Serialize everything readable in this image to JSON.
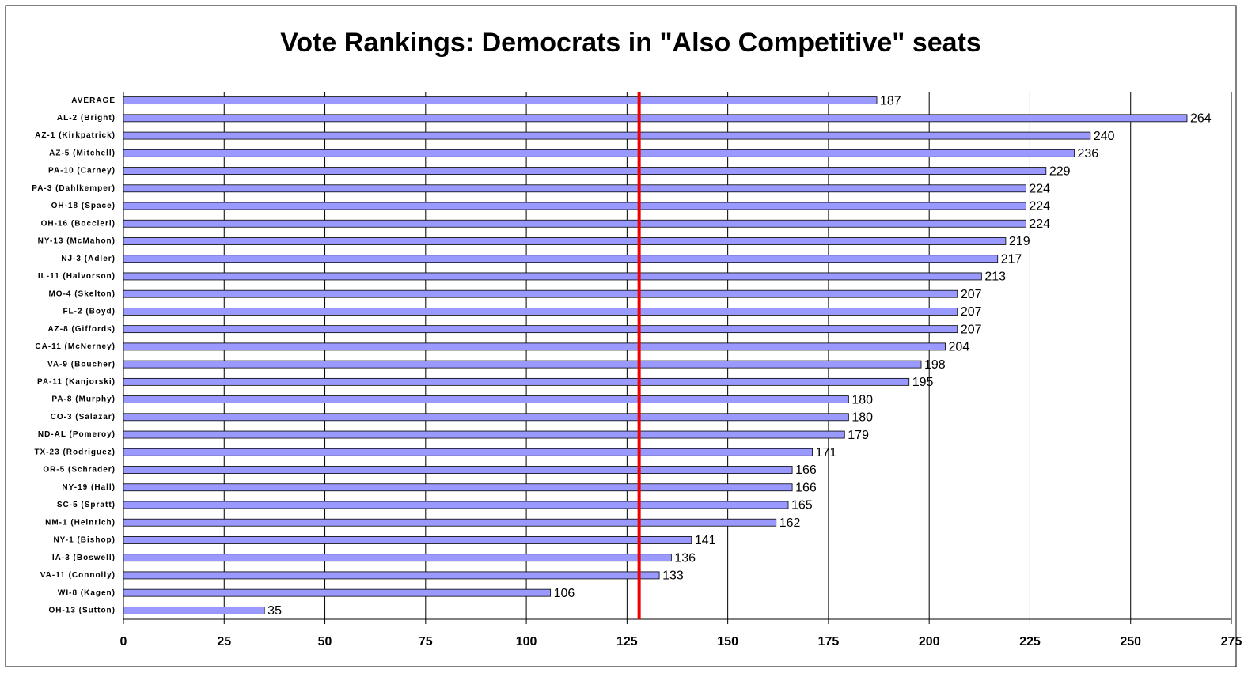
{
  "chart_data": {
    "type": "hbar",
    "title": "Vote Rankings: Democrats in \"Also Competitive\" seats",
    "categories": [
      "AVERAGE",
      "AL-2 (Bright)",
      "AZ-1 (Kirkpatrick)",
      "AZ-5 (Mitchell)",
      "PA-10 (Carney)",
      "PA-3 (Dahlkemper)",
      "OH-18 (Space)",
      "OH-16 (Boccieri)",
      "NY-13 (McMahon)",
      "NJ-3 (Adler)",
      "IL-11 (Halvorson)",
      "MO-4 (Skelton)",
      "FL-2 (Boyd)",
      "AZ-8 (Giffords)",
      "CA-11 (McNerney)",
      "VA-9 (Boucher)",
      "PA-11 (Kanjorski)",
      "PA-8 (Murphy)",
      "CO-3 (Salazar)",
      "ND-AL (Pomeroy)",
      "TX-23 (Rodriguez)",
      "OR-5 (Schrader)",
      "NY-19 (Hall)",
      "SC-5 (Spratt)",
      "NM-1 (Heinrich)",
      "NY-1 (Bishop)",
      "IA-3 (Boswell)",
      "VA-11 (Connolly)",
      "WI-8 (Kagen)",
      "OH-13 (Sutton)"
    ],
    "values": [
      187,
      264,
      240,
      236,
      229,
      224,
      224,
      224,
      219,
      217,
      213,
      207,
      207,
      207,
      204,
      198,
      195,
      180,
      180,
      179,
      171,
      166,
      166,
      165,
      162,
      141,
      136,
      133,
      106,
      35
    ],
    "color": "#9999ff",
    "xlim": [
      0,
      275
    ],
    "xticks": [
      0,
      25,
      50,
      75,
      100,
      125,
      150,
      175,
      200,
      225,
      250,
      275
    ],
    "grid": true,
    "reference_line": 128,
    "reference_color": "#ee0000"
  }
}
